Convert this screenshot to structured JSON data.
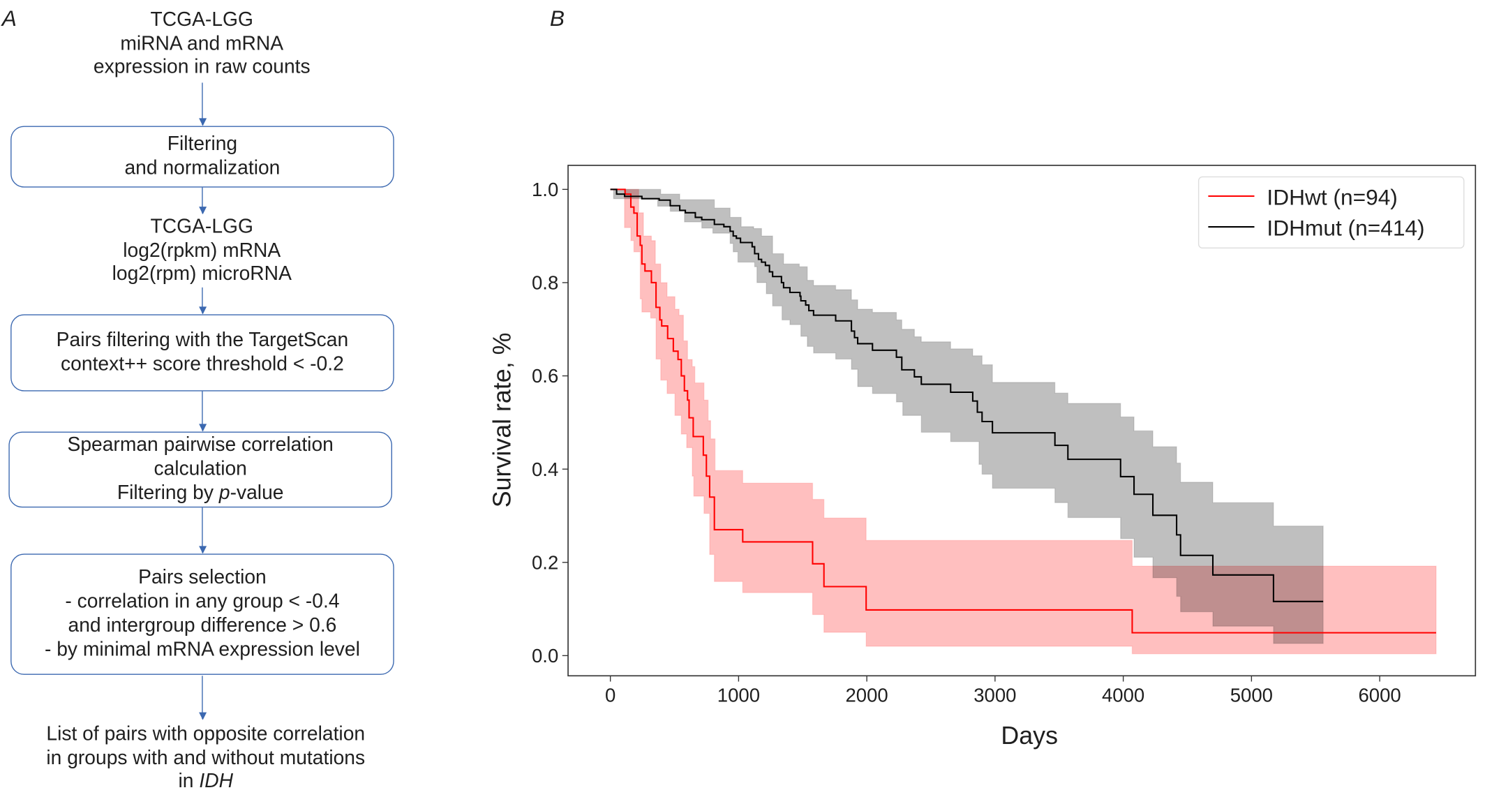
{
  "flowchart": {
    "label": "A",
    "input": [
      "TCGA-LGG",
      "miRNA and mRNA",
      "expression in raw counts"
    ],
    "step1": [
      "Filtering",
      "and normalization"
    ],
    "intermediate": [
      "TCGA-LGG",
      "log2(rpkm) mRNA",
      "log2(rpm) microRNA"
    ],
    "step2": [
      "Pairs filtering with the TargetScan",
      "context++ score threshold < -0.2"
    ],
    "step3": {
      "line1": "Spearman pairwise correlation",
      "line2": "calculation",
      "line3_pre": "Filtering by ",
      "line3_italic": "p",
      "line3_post": "-value"
    },
    "step4": [
      "Pairs selection",
      "- correlation in any group < -0.4",
      "and intergroup difference > 0.6",
      "- by minimal mRNA expression level"
    ],
    "output": {
      "line1": "List of pairs with opposite correlation",
      "line2": "in groups with and without mutations",
      "line3_pre": "in ",
      "line3_italic": "IDH"
    },
    "accent_color": "#3b68b0"
  },
  "chart_data": {
    "type": "line",
    "panel_label": "B",
    "xlabel": "Days",
    "ylabel": "Survival rate, %",
    "xlim": [
      -330,
      6750
    ],
    "ylim": [
      -0.045,
      1.05
    ],
    "xticks": [
      0,
      1000,
      2000,
      3000,
      4000,
      5000,
      6000
    ],
    "yticks": [
      0.0,
      0.2,
      0.4,
      0.6,
      0.8,
      1.0
    ],
    "ytick_labels": [
      "0.0",
      "0.2",
      "0.4",
      "0.6",
      "0.8",
      "1.0"
    ],
    "grid": false,
    "legend_position": "top-right",
    "series": [
      {
        "name": "IDHwt (n=94)",
        "color": "#ff0000",
        "band_color": "#ff0000",
        "end_x": 6440,
        "steps": [
          [
            0,
            1.0
          ],
          [
            115,
            0.99
          ],
          [
            160,
            0.962
          ],
          [
            184,
            0.949
          ],
          [
            209,
            0.9
          ],
          [
            233,
            0.88
          ],
          [
            246,
            0.84
          ],
          [
            270,
            0.825
          ],
          [
            320,
            0.8
          ],
          [
            356,
            0.747
          ],
          [
            386,
            0.72
          ],
          [
            400,
            0.707
          ],
          [
            447,
            0.68
          ],
          [
            491,
            0.653
          ],
          [
            528,
            0.635
          ],
          [
            553,
            0.6
          ],
          [
            577,
            0.568
          ],
          [
            602,
            0.548
          ],
          [
            614,
            0.51
          ],
          [
            646,
            0.47
          ],
          [
            725,
            0.43
          ],
          [
            749,
            0.385
          ],
          [
            774,
            0.34
          ],
          [
            811,
            0.27
          ],
          [
            1032,
            0.244
          ],
          [
            1577,
            0.197
          ],
          [
            1666,
            0.148
          ],
          [
            1995,
            0.098
          ],
          [
            4070,
            0.049
          ]
        ],
        "ci_upper": [
          [
            0,
            1.0
          ],
          [
            221,
            0.95
          ],
          [
            258,
            0.9
          ],
          [
            320,
            0.89
          ],
          [
            351,
            0.84
          ],
          [
            393,
            0.8
          ],
          [
            442,
            0.77
          ],
          [
            504,
            0.743
          ],
          [
            536,
            0.73
          ],
          [
            570,
            0.675
          ],
          [
            602,
            0.635
          ],
          [
            639,
            0.62
          ],
          [
            659,
            0.585
          ],
          [
            730,
            0.548
          ],
          [
            762,
            0.504
          ],
          [
            782,
            0.465
          ],
          [
            816,
            0.397
          ],
          [
            1032,
            0.37
          ],
          [
            1577,
            0.335
          ],
          [
            1666,
            0.295
          ],
          [
            1995,
            0.247
          ],
          [
            4070,
            0.192
          ]
        ],
        "ci_lower": [
          [
            0,
            1.0
          ],
          [
            110,
            0.918
          ],
          [
            160,
            0.89
          ],
          [
            184,
            0.866
          ],
          [
            233,
            0.765
          ],
          [
            246,
            0.737
          ],
          [
            314,
            0.724
          ],
          [
            356,
            0.636
          ],
          [
            393,
            0.591
          ],
          [
            442,
            0.562
          ],
          [
            504,
            0.515
          ],
          [
            553,
            0.475
          ],
          [
            595,
            0.446
          ],
          [
            639,
            0.385
          ],
          [
            651,
            0.342
          ],
          [
            730,
            0.305
          ],
          [
            774,
            0.217
          ],
          [
            811,
            0.159
          ],
          [
            1032,
            0.135
          ],
          [
            1577,
            0.088
          ],
          [
            1666,
            0.05
          ],
          [
            1995,
            0.02
          ],
          [
            4070,
            0.004
          ]
        ]
      },
      {
        "name": "IDHmut (n=414)",
        "color": "#000000",
        "band_color": "#000000",
        "end_x": 5559,
        "steps": [
          [
            0,
            1.0
          ],
          [
            49,
            0.99
          ],
          [
            111,
            0.985
          ],
          [
            246,
            0.98
          ],
          [
            381,
            0.977
          ],
          [
            467,
            0.965
          ],
          [
            541,
            0.955
          ],
          [
            585,
            0.95
          ],
          [
            663,
            0.94
          ],
          [
            713,
            0.935
          ],
          [
            811,
            0.925
          ],
          [
            885,
            0.92
          ],
          [
            934,
            0.91
          ],
          [
            958,
            0.9
          ],
          [
            983,
            0.895
          ],
          [
            1015,
            0.886
          ],
          [
            1106,
            0.877
          ],
          [
            1125,
            0.862
          ],
          [
            1155,
            0.85
          ],
          [
            1179,
            0.844
          ],
          [
            1209,
            0.837
          ],
          [
            1241,
            0.823
          ],
          [
            1265,
            0.813
          ],
          [
            1334,
            0.8
          ],
          [
            1351,
            0.789
          ],
          [
            1400,
            0.779
          ],
          [
            1479,
            0.771
          ],
          [
            1486,
            0.761
          ],
          [
            1523,
            0.752
          ],
          [
            1548,
            0.74
          ],
          [
            1585,
            0.73
          ],
          [
            1757,
            0.718
          ],
          [
            1880,
            0.696
          ],
          [
            1904,
            0.682
          ],
          [
            1929,
            0.669
          ],
          [
            2044,
            0.655
          ],
          [
            2231,
            0.64
          ],
          [
            2273,
            0.613
          ],
          [
            2371,
            0.598
          ],
          [
            2425,
            0.582
          ],
          [
            2654,
            0.565
          ],
          [
            2826,
            0.546
          ],
          [
            2862,
            0.522
          ],
          [
            2899,
            0.502
          ],
          [
            2980,
            0.478
          ],
          [
            3467,
            0.451
          ],
          [
            3568,
            0.421
          ],
          [
            3979,
            0.384
          ],
          [
            4084,
            0.346
          ],
          [
            4231,
            0.301
          ],
          [
            4416,
            0.259
          ],
          [
            4447,
            0.215
          ],
          [
            4699,
            0.173
          ],
          [
            5172,
            0.116
          ]
        ],
        "ci_upper": [
          [
            0,
            1.0
          ],
          [
            393,
            0.99
          ],
          [
            541,
            0.978
          ],
          [
            811,
            0.96
          ],
          [
            934,
            0.94
          ],
          [
            1020,
            0.92
          ],
          [
            1118,
            0.916
          ],
          [
            1179,
            0.9
          ],
          [
            1265,
            0.862
          ],
          [
            1351,
            0.84
          ],
          [
            1474,
            0.834
          ],
          [
            1536,
            0.805
          ],
          [
            1585,
            0.794
          ],
          [
            1757,
            0.785
          ],
          [
            1880,
            0.763
          ],
          [
            1929,
            0.743
          ],
          [
            2044,
            0.736
          ],
          [
            2231,
            0.72
          ],
          [
            2273,
            0.7
          ],
          [
            2371,
            0.684
          ],
          [
            2425,
            0.673
          ],
          [
            2654,
            0.658
          ],
          [
            2826,
            0.643
          ],
          [
            2899,
            0.624
          ],
          [
            2980,
            0.586
          ],
          [
            3467,
            0.563
          ],
          [
            3568,
            0.541
          ],
          [
            3979,
            0.512
          ],
          [
            4084,
            0.482
          ],
          [
            4231,
            0.448
          ],
          [
            4416,
            0.413
          ],
          [
            4447,
            0.372
          ],
          [
            4699,
            0.328
          ],
          [
            5172,
            0.278
          ]
        ],
        "ci_lower": [
          [
            0,
            1.0
          ],
          [
            25,
            0.98
          ],
          [
            369,
            0.964
          ],
          [
            467,
            0.953
          ],
          [
            578,
            0.93
          ],
          [
            713,
            0.917
          ],
          [
            799,
            0.906
          ],
          [
            934,
            0.884
          ],
          [
            958,
            0.866
          ],
          [
            995,
            0.844
          ],
          [
            1125,
            0.834
          ],
          [
            1143,
            0.8
          ],
          [
            1216,
            0.776
          ],
          [
            1265,
            0.75
          ],
          [
            1339,
            0.72
          ],
          [
            1400,
            0.71
          ],
          [
            1486,
            0.685
          ],
          [
            1536,
            0.663
          ],
          [
            1585,
            0.649
          ],
          [
            1757,
            0.636
          ],
          [
            1880,
            0.614
          ],
          [
            1929,
            0.577
          ],
          [
            2044,
            0.562
          ],
          [
            2231,
            0.544
          ],
          [
            2280,
            0.515
          ],
          [
            2425,
            0.479
          ],
          [
            2654,
            0.459
          ],
          [
            2875,
            0.41
          ],
          [
            2899,
            0.389
          ],
          [
            2980,
            0.359
          ],
          [
            3467,
            0.328
          ],
          [
            3568,
            0.296
          ],
          [
            3979,
            0.251
          ],
          [
            4084,
            0.211
          ],
          [
            4231,
            0.167
          ],
          [
            4416,
            0.127
          ],
          [
            4447,
            0.094
          ],
          [
            4699,
            0.063
          ],
          [
            5172,
            0.026
          ]
        ]
      }
    ]
  }
}
